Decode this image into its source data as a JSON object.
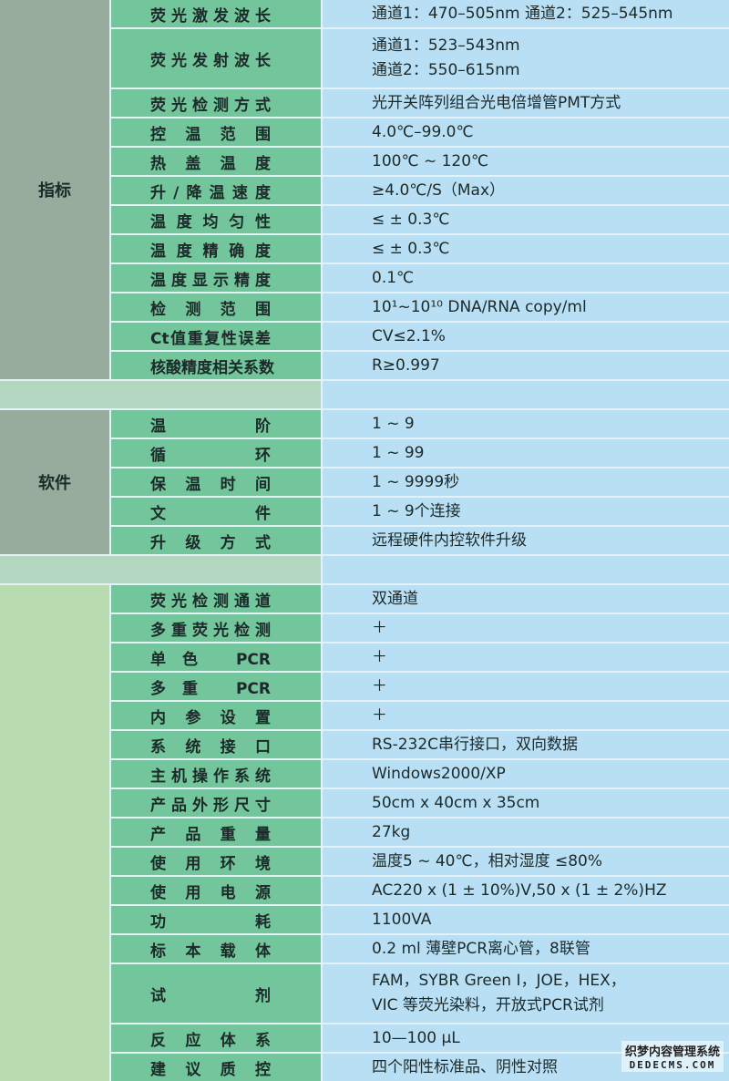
{
  "colors": {
    "category": "#98ac9d",
    "category_light": "#b8dcb0",
    "label": "#73c59b",
    "value": "#b9dff5"
  },
  "sections": [
    {
      "name": "指标",
      "rows": [
        {
          "label": "荧光激发波长",
          "value": [
            "通道1：470–505nm  通道2：525–545nm"
          ]
        },
        {
          "label": "荧光发射波长",
          "value": [
            "通道1：523–543nm",
            "通道2：550–615nm"
          ]
        },
        {
          "label": "荧光检测方式",
          "value": [
            "光开关阵列组合光电倍增管PMT方式"
          ]
        },
        {
          "label": "控温范围",
          "value": [
            "4.0℃–99.0℃"
          ]
        },
        {
          "label": "热盖温度",
          "value": [
            "100℃ ~ 120℃"
          ]
        },
        {
          "label": "升/降温速度",
          "value": [
            "≥4.0℃/S（Max）"
          ]
        },
        {
          "label": "温度均匀性",
          "value": [
            "≤ ± 0.3℃"
          ]
        },
        {
          "label": "温度精确度",
          "value": [
            "≤ ± 0.3℃"
          ]
        },
        {
          "label": "温度显示精度",
          "value": [
            "0.1℃"
          ]
        },
        {
          "label": "检测范围",
          "value": [
            "10¹~10¹⁰ DNA/RNA copy/ml"
          ]
        },
        {
          "label": "Ct值重复性误差",
          "value": [
            "CV≤2.1%"
          ]
        },
        {
          "label": "核酸精度相关系数",
          "value": [
            "R≥0.997"
          ]
        }
      ]
    },
    {
      "name": "软件",
      "rows": [
        {
          "label": "温阶",
          "value": [
            "1 ~ 9"
          ]
        },
        {
          "label": "循环",
          "value": [
            "1 ~ 99"
          ]
        },
        {
          "label": "保温时间",
          "value": [
            "1 ~ 9999秒"
          ]
        },
        {
          "label": "文件",
          "value": [
            "1 ~ 9个连接"
          ]
        },
        {
          "label": "升级方式",
          "value": [
            "远程硬件内控软件升级"
          ]
        }
      ]
    },
    {
      "name": "",
      "rows": [
        {
          "label": "荧光检测通道",
          "value": [
            "双通道"
          ]
        },
        {
          "label": "多重荧光检测",
          "value": [
            "＋"
          ]
        },
        {
          "label": "单色 PCR",
          "value": [
            "＋"
          ]
        },
        {
          "label": "多重 PCR",
          "value": [
            "＋"
          ]
        },
        {
          "label": "内参设置",
          "value": [
            "＋"
          ]
        },
        {
          "label": "系统接口",
          "value": [
            "RS-232C串行接口，双向数据"
          ]
        },
        {
          "label": "主机操作系统",
          "value": [
            "Windows2000/XP"
          ]
        },
        {
          "label": "产品外形尺寸",
          "value": [
            "50cm x 40cm x 35cm"
          ]
        },
        {
          "label": "产品重量",
          "value": [
            "27kg"
          ]
        },
        {
          "label": "使用环境",
          "value": [
            "温度5 ~ 40℃，相对湿度 ≤80%"
          ]
        },
        {
          "label": "使用电源",
          "value": [
            "AC220 x (1 ± 10%)V,50 x (1 ± 2%)HZ"
          ]
        },
        {
          "label": "功耗",
          "value": [
            "1100VA"
          ]
        },
        {
          "label": "标本载体",
          "value": [
            "0.2 ml  薄壁PCR离心管，8联管"
          ]
        },
        {
          "label": "试剂",
          "value": [
            "FAM，SYBR Green Ⅰ，JOE，HEX，",
            "VIC 等荧光染料，开放式PCR试剂"
          ]
        },
        {
          "label": "反应体系",
          "value": [
            "10—100 μL"
          ]
        },
        {
          "label": "建议质控",
          "value": [
            "四个阳性标准品、阴性对照"
          ]
        }
      ]
    }
  ],
  "watermark": {
    "line1": "织梦内容管理系统",
    "line2": "DEDECMS.COM"
  }
}
